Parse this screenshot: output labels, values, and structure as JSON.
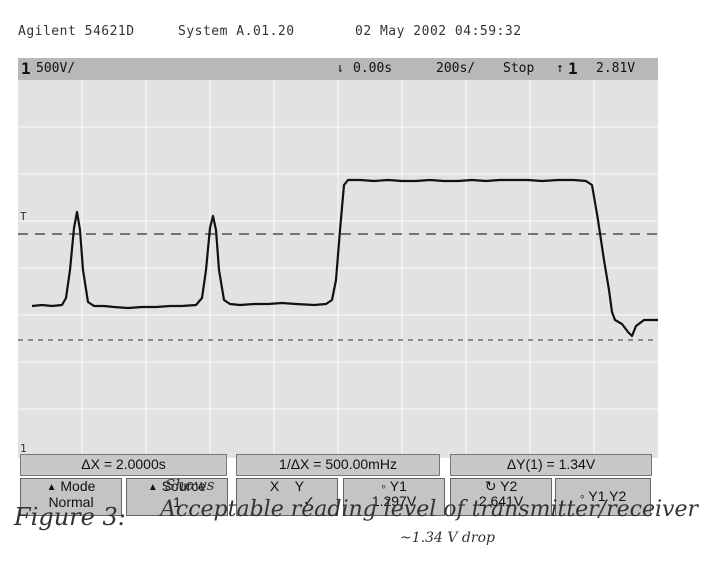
{
  "header": {
    "model": "Agilent 54621D",
    "system": "System A.01.20",
    "datetime": "02 May 2002 04:59:32"
  },
  "status_bar": {
    "channel": "1",
    "volts_per_div": "500V/",
    "time_offset": "0.00s",
    "time_per_div": "200s/",
    "run_state": "Stop",
    "trigger_channel": "1",
    "trigger_level": "2.81V"
  },
  "measurements": {
    "delta_x": "ΔX = 2.0000s",
    "inv_delta_x": "1/ΔX = 500.00mHz",
    "delta_y": "ΔY(1) = 1.34V"
  },
  "softkeys": {
    "mode_label": "Mode",
    "mode_value": "Normal",
    "source_label": "Source",
    "source_value": "1",
    "x_label": "X",
    "y_label": "Y",
    "xy_check": "✓",
    "y1_label": "Y1",
    "y1_value": "1.297V",
    "y2_label": "Y2",
    "y2_value": "2.641V",
    "y1y2_label": "Y1 Y2"
  },
  "annotation": {
    "figure": "Figure 3:",
    "shows": "Shows",
    "caption": "Acceptable reading level of transmitter/receiver",
    "drop": "~1.34 V drop"
  },
  "colors": {
    "screen_bg": "#e2e2e2",
    "trace": "#111111",
    "grid": "#f5f5f5",
    "cursor": "#333333"
  }
}
